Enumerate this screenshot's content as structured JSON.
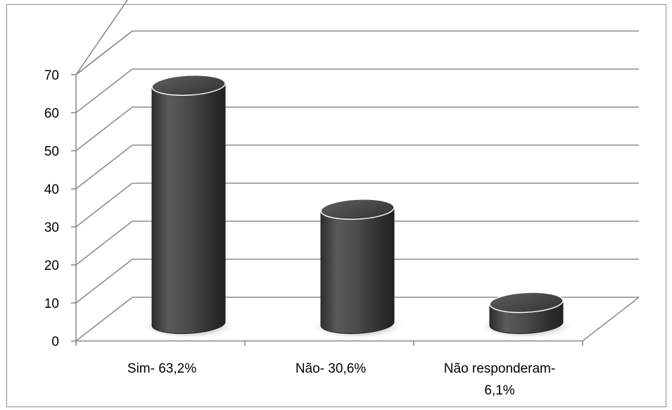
{
  "chart_data": {
    "type": "bar",
    "style": "3d-cylinder",
    "categories": [
      [
        "Sim- 63,2%"
      ],
      [
        "Não- 30,6%"
      ],
      [
        "Não responderam-",
        "6,1%"
      ]
    ],
    "series": [
      {
        "values": [
          63.2,
          30.6,
          6.1
        ]
      }
    ],
    "ylim": [
      0,
      70
    ],
    "yticks": [
      0,
      10,
      20,
      30,
      40,
      50,
      60,
      70
    ],
    "title": "",
    "xlabel": "",
    "ylabel": "",
    "grid": true,
    "legend": "none",
    "colors": {
      "bar": "#4a4a4a",
      "grid": "#8c8c8c",
      "frame": "#8c8c8c",
      "text": "#000000"
    }
  }
}
